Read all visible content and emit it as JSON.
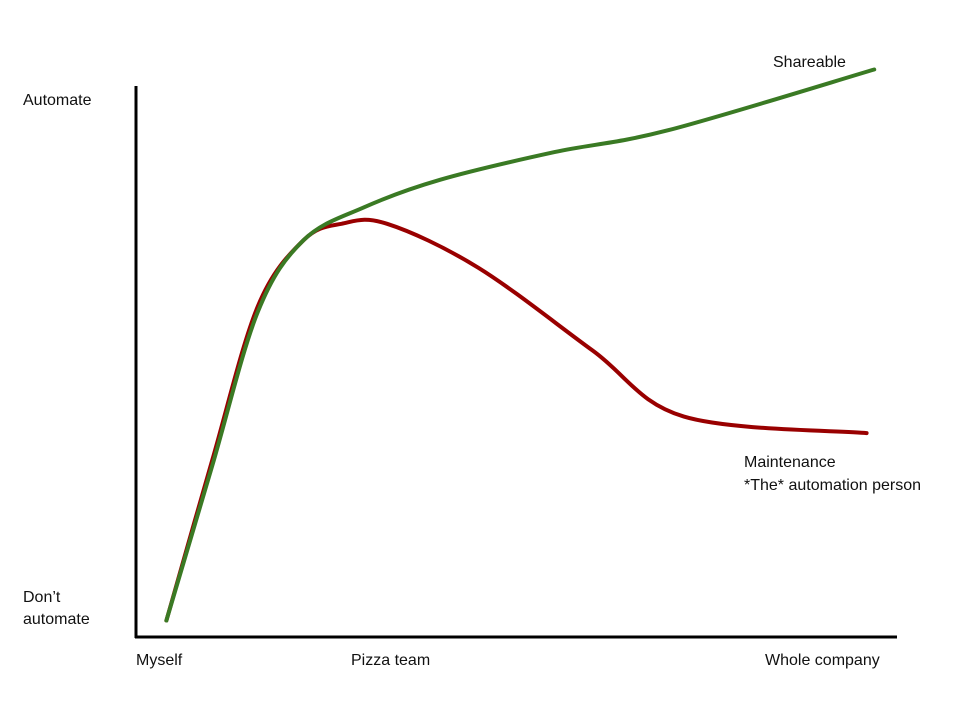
{
  "chart_data": {
    "type": "line",
    "title": "",
    "xlabel": "",
    "ylabel": "",
    "x_ticks": [
      "Myself",
      "Pizza team",
      "Whole company"
    ],
    "y_ticks": {
      "top": "Automate",
      "bottom_line1": "Don’t",
      "bottom_line2": "automate"
    },
    "xlim": [
      0,
      1
    ],
    "ylim": [
      0,
      1
    ],
    "grid": false,
    "legend": "none",
    "series": [
      {
        "color": "#3a7a24",
        "label_lines": [
          "Shareable"
        ],
        "points": [
          [
            0.04,
            0.03
          ],
          [
            0.1,
            0.31
          ],
          [
            0.16,
            0.59
          ],
          [
            0.22,
            0.72
          ],
          [
            0.3,
            0.78
          ],
          [
            0.4,
            0.83
          ],
          [
            0.55,
            0.88
          ],
          [
            0.7,
            0.92
          ],
          [
            0.97,
            1.03
          ]
        ]
      },
      {
        "color": "#990000",
        "label_lines": [
          "Maintenance",
          "*The* automation person"
        ],
        "points": [
          [
            0.04,
            0.03
          ],
          [
            0.1,
            0.32
          ],
          [
            0.16,
            0.6
          ],
          [
            0.22,
            0.72
          ],
          [
            0.27,
            0.75
          ],
          [
            0.33,
            0.75
          ],
          [
            0.45,
            0.67
          ],
          [
            0.6,
            0.52
          ],
          [
            0.72,
            0.4
          ],
          [
            0.96,
            0.37
          ]
        ]
      }
    ]
  }
}
